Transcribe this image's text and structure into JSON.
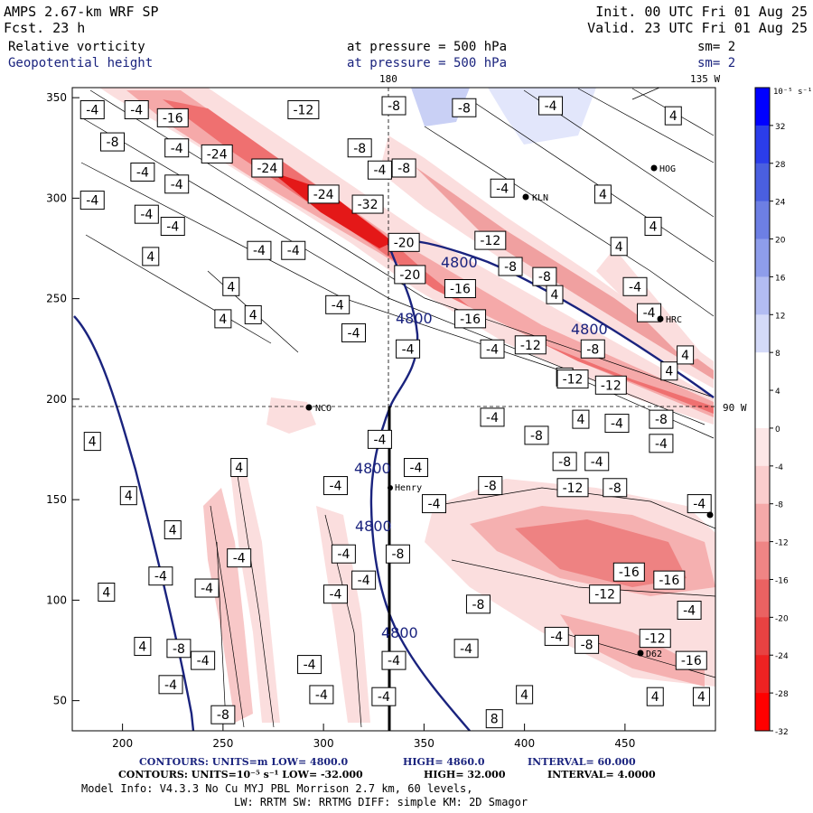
{
  "header": {
    "model": "AMPS 2.67-km WRF SP",
    "fcst": "Fcst.   23 h",
    "init": "Init. 00 UTC Fri 01 Aug 25",
    "valid": "Valid. 23 UTC Fri 01 Aug 25",
    "field1_name": "Relative vorticity",
    "field1_level": "at pressure =  500 hPa",
    "field1_sm": "sm= 2",
    "field2_name": "Geopotential height",
    "field2_level": "at pressure =  500 hPa",
    "field2_sm": "sm= 2"
  },
  "map_labels": {
    "lon_180": "180",
    "lon_135w": "135 W",
    "lon_90w": "90 W",
    "stations": [
      "NCO",
      "Henry",
      "HRC",
      "HOG",
      "KLN",
      "D62"
    ]
  },
  "footer": {
    "line1_a": "CONTOURS:  UNITS=m  LOW=  4800.0",
    "line1_b": "HIGH=  4860.0",
    "line1_c": "INTERVAL=   60.000",
    "line2_a": "CONTOURS:  UNITS=10⁻⁵ s⁻¹  LOW= -32.000",
    "line2_b": "HIGH=  32.000",
    "line2_c": "INTERVAL=   4.0000",
    "line3": "Model Info: V4.3.3    No Cu    MYJ PBL  Morrison              2.7 km,  60 levels,",
    "line4": "LW: RRTM SW: RRTMG   DIFF: simple KM: 2D Smagor"
  },
  "chart_data": {
    "type": "heatmap",
    "xlim": [
      175,
      495
    ],
    "ylim": [
      35,
      355
    ],
    "x_ticks": [
      200,
      250,
      300,
      350,
      400,
      450
    ],
    "y_ticks": [
      50,
      100,
      150,
      200,
      250,
      300,
      350
    ],
    "colorbar": {
      "unit_label": "10⁻⁵ s⁻¹",
      "ticks": [
        32,
        28,
        24,
        20,
        16,
        12,
        8,
        4,
        0,
        -4,
        -8,
        -12,
        -16,
        -20,
        -24,
        -28,
        -32
      ],
      "colors": [
        "#0000ff",
        "#2b3dea",
        "#4a5fe0",
        "#6d7fe4",
        "#8e9deb",
        "#b2bcf2",
        "#d4daf8",
        "#ffffff",
        "#ffffff",
        "#fde7e7",
        "#facdcd",
        "#f5a9a9",
        "#ef8585",
        "#ea6262",
        "#e84242",
        "#ee2222",
        "#ff0000"
      ]
    },
    "geopotential_height_contours": [
      {
        "level": 4800,
        "label": "4800"
      }
    ],
    "vorticity_labels": [
      {
        "v": "-4",
        "x": 185,
        "y": 344
      },
      {
        "v": "-4",
        "x": 207,
        "y": 344
      },
      {
        "v": "-16",
        "x": 225,
        "y": 340
      },
      {
        "v": "-12",
        "x": 290,
        "y": 344
      },
      {
        "v": "-8",
        "x": 335,
        "y": 346
      },
      {
        "v": "-8",
        "x": 370,
        "y": 345
      },
      {
        "v": "-4",
        "x": 413,
        "y": 346
      },
      {
        "v": "4",
        "x": 474,
        "y": 341
      },
      {
        "v": "-8",
        "x": 195,
        "y": 328
      },
      {
        "v": "-24",
        "x": 247,
        "y": 322
      },
      {
        "v": "-4",
        "x": 227,
        "y": 325
      },
      {
        "v": "-24",
        "x": 272,
        "y": 315
      },
      {
        "v": "-8",
        "x": 318,
        "y": 325
      },
      {
        "v": "-8",
        "x": 340,
        "y": 315
      },
      {
        "v": "-4",
        "x": 210,
        "y": 313
      },
      {
        "v": "-4",
        "x": 227,
        "y": 307
      },
      {
        "v": "-4",
        "x": 328,
        "y": 314
      },
      {
        "v": "-24",
        "x": 300,
        "y": 302
      },
      {
        "v": "-32",
        "x": 322,
        "y": 297
      },
      {
        "v": "-4",
        "x": 389,
        "y": 305
      },
      {
        "v": "-4",
        "x": 185,
        "y": 299
      },
      {
        "v": "-4",
        "x": 212,
        "y": 292
      },
      {
        "v": "4",
        "x": 439,
        "y": 302
      },
      {
        "v": "-4",
        "x": 225,
        "y": 286
      },
      {
        "v": "-20",
        "x": 340,
        "y": 278
      },
      {
        "v": "-12",
        "x": 383,
        "y": 279
      },
      {
        "v": "4",
        "x": 464,
        "y": 286
      },
      {
        "v": "4",
        "x": 214,
        "y": 271
      },
      {
        "v": "-4",
        "x": 268,
        "y": 274
      },
      {
        "v": "-4",
        "x": 285,
        "y": 274
      },
      {
        "v": "-8",
        "x": 393,
        "y": 266
      },
      {
        "v": "-8",
        "x": 410,
        "y": 261
      },
      {
        "v": "4",
        "x": 447,
        "y": 276
      },
      {
        "v": "-20",
        "x": 343,
        "y": 262
      },
      {
        "v": "-16",
        "x": 368,
        "y": 255
      },
      {
        "v": "-4",
        "x": 455,
        "y": 256
      },
      {
        "v": "4",
        "x": 254,
        "y": 256
      },
      {
        "v": "4",
        "x": 265,
        "y": 242
      },
      {
        "v": "4",
        "x": 250,
        "y": 240
      },
      {
        "v": "-4",
        "x": 307,
        "y": 247
      },
      {
        "v": "-16",
        "x": 373,
        "y": 240
      },
      {
        "v": "-4",
        "x": 462,
        "y": 243
      },
      {
        "v": "4",
        "x": 415,
        "y": 252
      },
      {
        "v": "-4",
        "x": 315,
        "y": 233
      },
      {
        "v": "-4",
        "x": 342,
        "y": 225
      },
      {
        "v": "-4",
        "x": 384,
        "y": 225
      },
      {
        "v": "-12",
        "x": 403,
        "y": 227
      },
      {
        "v": "-8",
        "x": 434,
        "y": 225
      },
      {
        "v": "4",
        "x": 472,
        "y": 214
      },
      {
        "v": "4",
        "x": 480,
        "y": 222
      },
      {
        "v": "4",
        "x": 420,
        "y": 211
      },
      {
        "v": "-12",
        "x": 424,
        "y": 210
      },
      {
        "v": "-12",
        "x": 443,
        "y": 207
      },
      {
        "v": "-4",
        "x": 384,
        "y": 191
      },
      {
        "v": "4",
        "x": 428,
        "y": 190
      },
      {
        "v": "-4",
        "x": 446,
        "y": 188
      },
      {
        "v": "-8",
        "x": 468,
        "y": 190
      },
      {
        "v": "-8",
        "x": 406,
        "y": 182
      },
      {
        "v": "-4",
        "x": 328,
        "y": 180
      },
      {
        "v": "-4",
        "x": 468,
        "y": 178
      },
      {
        "v": "4",
        "x": 185,
        "y": 179
      },
      {
        "v": "-8",
        "x": 420,
        "y": 169
      },
      {
        "v": "-4",
        "x": 436,
        "y": 169
      },
      {
        "v": "-4",
        "x": 346,
        "y": 166
      },
      {
        "v": "4",
        "x": 258,
        "y": 166
      },
      {
        "v": "-4",
        "x": 306,
        "y": 157
      },
      {
        "v": "-8",
        "x": 383,
        "y": 157
      },
      {
        "v": "-12",
        "x": 424,
        "y": 156
      },
      {
        "v": "-8",
        "x": 445,
        "y": 156
      },
      {
        "v": "4",
        "x": 203,
        "y": 152
      },
      {
        "v": "-4",
        "x": 355,
        "y": 148
      },
      {
        "v": "-4",
        "x": 487,
        "y": 148
      },
      {
        "v": "-4",
        "x": 310,
        "y": 123
      },
      {
        "v": "-8",
        "x": 337,
        "y": 123
      },
      {
        "v": "-4",
        "x": 258,
        "y": 121
      },
      {
        "v": "4",
        "x": 225,
        "y": 135
      },
      {
        "v": "-16",
        "x": 452,
        "y": 114
      },
      {
        "v": "-16",
        "x": 472,
        "y": 110
      },
      {
        "v": "-4",
        "x": 219,
        "y": 112
      },
      {
        "v": "-4",
        "x": 242,
        "y": 106
      },
      {
        "v": "-4",
        "x": 320,
        "y": 110
      },
      {
        "v": "4",
        "x": 192,
        "y": 104
      },
      {
        "v": "-12",
        "x": 440,
        "y": 103
      },
      {
        "v": "-4",
        "x": 306,
        "y": 103
      },
      {
        "v": "-8",
        "x": 377,
        "y": 98
      },
      {
        "v": "-4",
        "x": 482,
        "y": 95
      },
      {
        "v": "-4",
        "x": 416,
        "y": 82
      },
      {
        "v": "-12",
        "x": 465,
        "y": 81
      },
      {
        "v": "-8",
        "x": 431,
        "y": 78
      },
      {
        "v": "4",
        "x": 210,
        "y": 77
      },
      {
        "v": "-8",
        "x": 228,
        "y": 76
      },
      {
        "v": "-4",
        "x": 371,
        "y": 76
      },
      {
        "v": "-4",
        "x": 240,
        "y": 70
      },
      {
        "v": "-4",
        "x": 335,
        "y": 70
      },
      {
        "v": "-16",
        "x": 483,
        "y": 70
      },
      {
        "v": "-4",
        "x": 293,
        "y": 68
      },
      {
        "v": "-4",
        "x": 224,
        "y": 58
      },
      {
        "v": "-4",
        "x": 299,
        "y": 53
      },
      {
        "v": "-4",
        "x": 330,
        "y": 52
      },
      {
        "v": "4",
        "x": 400,
        "y": 53
      },
      {
        "v": "4",
        "x": 465,
        "y": 52
      },
      {
        "v": "4",
        "x": 488,
        "y": 52
      },
      {
        "v": "-8",
        "x": 250,
        "y": 43
      },
      {
        "v": "8",
        "x": 385,
        "y": 41
      }
    ]
  }
}
